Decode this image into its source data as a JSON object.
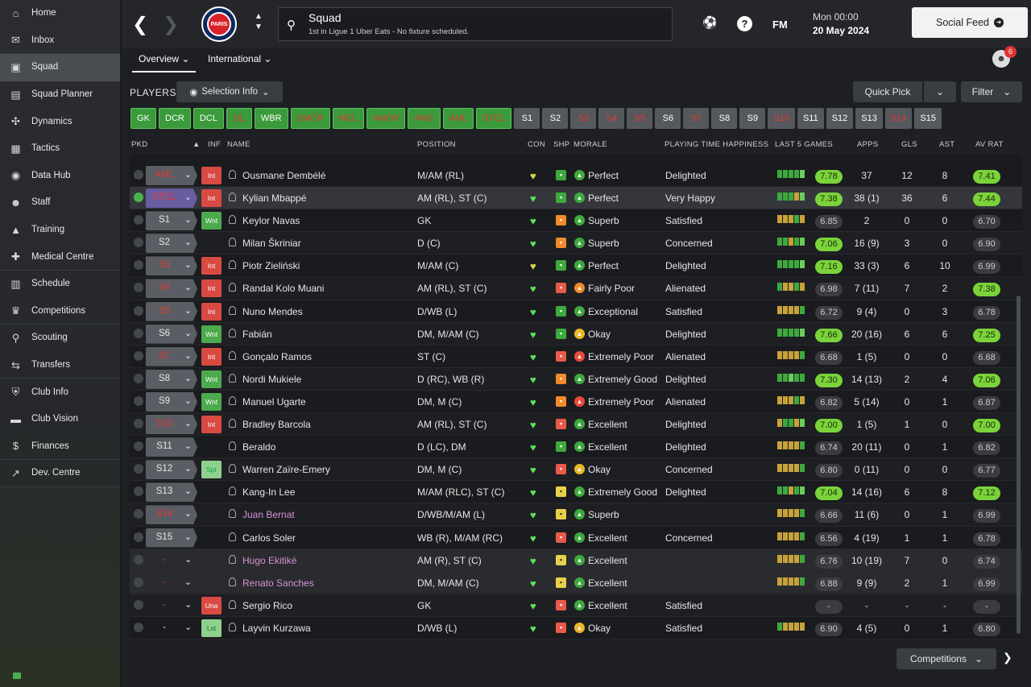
{
  "sidebar": {
    "items": [
      {
        "label": "Home",
        "icon": "home-icon",
        "g": "⌂"
      },
      {
        "label": "Inbox",
        "icon": "inbox-icon",
        "g": "✉"
      },
      {
        "label": "Squad",
        "icon": "squad-icon",
        "g": "▣"
      },
      {
        "label": "Squad Planner",
        "icon": "clipboard-icon",
        "g": "▤"
      },
      {
        "label": "Dynamics",
        "icon": "dynamics-icon",
        "g": "✣"
      },
      {
        "label": "Tactics",
        "icon": "tactics-icon",
        "g": "▦"
      },
      {
        "label": "Data Hub",
        "icon": "data-hub-icon",
        "g": "◉"
      },
      {
        "label": "Staff",
        "icon": "staff-icon",
        "g": "☻"
      },
      {
        "label": "Training",
        "icon": "training-icon",
        "g": "▲"
      },
      {
        "label": "Medical Centre",
        "icon": "medical-icon",
        "g": "✚"
      },
      {
        "label": "Schedule",
        "icon": "calendar-icon",
        "g": "▥"
      },
      {
        "label": "Competitions",
        "icon": "trophy-icon",
        "g": "♛"
      },
      {
        "label": "Scouting",
        "icon": "search-icon",
        "g": "⚲"
      },
      {
        "label": "Transfers",
        "icon": "transfers-icon",
        "g": "⇆"
      },
      {
        "label": "Club Info",
        "icon": "shield-icon",
        "g": "⛨"
      },
      {
        "label": "Club Vision",
        "icon": "briefcase-icon",
        "g": "▬"
      },
      {
        "label": "Finances",
        "icon": "finances-icon",
        "g": "$"
      },
      {
        "label": "Dev. Centre",
        "icon": "dev-centre-icon",
        "g": "↗"
      }
    ]
  },
  "header": {
    "back": "❮",
    "forward": "❯",
    "crest_text": "PARIS",
    "title": "Squad",
    "subtitle": "1st in Ligue 1 Uber Eats - No fixture scheduled.",
    "fm": "FM",
    "help": "?",
    "date_time": "Mon 00:00",
    "date": "20 May 2024",
    "social_feed": "Social Feed",
    "avatar_badge": "6"
  },
  "tabs": {
    "overview": "Overview",
    "international": "International"
  },
  "toolbar": {
    "players": "PLAYERS",
    "selection_info": "Selection Info",
    "quick_pick": "Quick Pick",
    "filter": "Filter"
  },
  "chips": [
    {
      "t": "GK",
      "c": "g"
    },
    {
      "t": "DCR",
      "c": "g"
    },
    {
      "t": "DCL",
      "c": "g"
    },
    {
      "t": "DL",
      "c": "gr"
    },
    {
      "t": "WBR",
      "c": "g"
    },
    {
      "t": "DMCR",
      "c": "gr"
    },
    {
      "t": "MCL",
      "c": "gr"
    },
    {
      "t": "AMCR",
      "c": "gr"
    },
    {
      "t": "AMC",
      "c": "gr"
    },
    {
      "t": "AML",
      "c": "gr"
    },
    {
      "t": "STCL",
      "c": "gr"
    },
    {
      "t": "S1",
      "c": "gy"
    },
    {
      "t": "S2",
      "c": "gy"
    },
    {
      "t": "S3",
      "c": "gyr"
    },
    {
      "t": "S4",
      "c": "gyr"
    },
    {
      "t": "S5",
      "c": "gyr"
    },
    {
      "t": "S6",
      "c": "gy"
    },
    {
      "t": "S7",
      "c": "gyr"
    },
    {
      "t": "S8",
      "c": "gy"
    },
    {
      "t": "S9",
      "c": "gy"
    },
    {
      "t": "S10",
      "c": "gyr"
    },
    {
      "t": "S11",
      "c": "gy"
    },
    {
      "t": "S12",
      "c": "gy"
    },
    {
      "t": "S13",
      "c": "gy"
    },
    {
      "t": "S14",
      "c": "gyr"
    },
    {
      "t": "S15",
      "c": "gy"
    }
  ],
  "columns": {
    "pkd": "PKD",
    "inf": "INF",
    "name": "NAME",
    "position": "POSITION",
    "con": "CON",
    "shp": "SHP",
    "morale": "MORALE",
    "pth": "PLAYING TIME HAPPINESS",
    "last5": "LAST 5 GAMES",
    "apps": "APPS",
    "gls": "GLS",
    "ast": "AST",
    "avrat": "AV RAT"
  },
  "rows": [
    {
      "pkd": false,
      "pos": "AML",
      "posRed": true,
      "inf": "Int",
      "infc": "int",
      "name": "Ousmane Dembélé",
      "position": "M/AM (RL)",
      "con": "y",
      "shp": "g",
      "mor": "g",
      "morale": "Perfect",
      "pth": "Delighted",
      "l5": [
        "g",
        "g",
        "g",
        "g",
        "lg"
      ],
      "l5r": "7.78",
      "l5g": true,
      "apps": "37",
      "gls": "12",
      "ast": "8",
      "av": "7.41",
      "avg": true
    },
    {
      "pkd": true,
      "pos": "STCL",
      "posRed": true,
      "sel": true,
      "inf": "Int",
      "infc": "int",
      "name": "Kylian Mbappé",
      "position": "AM (RL), ST (C)",
      "con": "g",
      "shp": "g",
      "mor": "g",
      "morale": "Perfect",
      "pth": "Very Happy",
      "l5": [
        "g",
        "g",
        "g",
        "o",
        "lg"
      ],
      "l5r": "7.38",
      "l5g": true,
      "apps": "38 (1)",
      "gls": "36",
      "ast": "6",
      "av": "7.44",
      "avg": true,
      "hl": true
    },
    {
      "pkd": false,
      "pos": "S1",
      "inf": "Wnt",
      "infc": "wnt",
      "name": "Keylor Navas",
      "position": "GK",
      "con": "g",
      "shp": "o",
      "mor": "g",
      "morale": "Superb",
      "pth": "Satisfied",
      "l5": [
        "o",
        "o",
        "o",
        "g",
        "o"
      ],
      "l5r": "6.85",
      "apps": "2",
      "gls": "0",
      "ast": "0",
      "av": "6.70"
    },
    {
      "pkd": false,
      "pos": "S2",
      "inf": "",
      "name": "Milan Škriniar",
      "position": "D (C)",
      "con": "g",
      "shp": "o",
      "mor": "g",
      "morale": "Superb",
      "pth": "Concerned",
      "l5": [
        "g",
        "g",
        "o",
        "g",
        "lg"
      ],
      "l5r": "7.06",
      "l5g": true,
      "apps": "16 (9)",
      "gls": "3",
      "ast": "0",
      "av": "6.90"
    },
    {
      "pkd": false,
      "pos": "S3",
      "posRed": true,
      "inf": "Int",
      "infc": "int",
      "name": "Piotr Zieliński",
      "position": "M/AM (C)",
      "con": "y",
      "shp": "g",
      "mor": "g",
      "morale": "Perfect",
      "pth": "Delighted",
      "l5": [
        "g",
        "g",
        "g",
        "g",
        "lg"
      ],
      "l5r": "7.16",
      "l5g": true,
      "apps": "33 (3)",
      "gls": "6",
      "ast": "10",
      "av": "6.99"
    },
    {
      "pkd": false,
      "pos": "S4",
      "posRed": true,
      "inf": "Int",
      "infc": "int",
      "name": "Randal Kolo Muani",
      "position": "AM (RL), ST (C)",
      "con": "g",
      "shp": "r",
      "mor": "o",
      "morale": "Fairly Poor",
      "pth": "Alienated",
      "l5": [
        "g",
        "o",
        "o",
        "g",
        "o"
      ],
      "l5r": "6.98",
      "apps": "7 (11)",
      "gls": "7",
      "ast": "2",
      "av": "7.38",
      "avg": true
    },
    {
      "pkd": false,
      "pos": "S5",
      "posRed": true,
      "inf": "Int",
      "infc": "int",
      "name": "Nuno Mendes",
      "position": "D/WB (L)",
      "con": "g",
      "shp": "g",
      "mor": "g",
      "morale": "Exceptional",
      "pth": "Satisfied",
      "l5": [
        "o",
        "o",
        "o",
        "o",
        "g"
      ],
      "l5r": "6.72",
      "apps": "9 (4)",
      "gls": "0",
      "ast": "3",
      "av": "6.78"
    },
    {
      "pkd": false,
      "pos": "S6",
      "inf": "Wnt",
      "infc": "wnt",
      "name": "Fabián",
      "position": "DM, M/AM (C)",
      "con": "g",
      "shp": "g",
      "mor": "y",
      "morale": "Okay",
      "pth": "Delighted",
      "l5": [
        "g",
        "g",
        "g",
        "g",
        "lg"
      ],
      "l5r": "7.66",
      "l5g": true,
      "apps": "20 (16)",
      "gls": "6",
      "ast": "6",
      "av": "7.25",
      "avg": true
    },
    {
      "pkd": false,
      "pos": "S7",
      "posRed": true,
      "inf": "Int",
      "infc": "int",
      "name": "Gonçalo Ramos",
      "position": "ST (C)",
      "con": "g",
      "shp": "r",
      "mor": "r",
      "morale": "Extremely Poor",
      "pth": "Alienated",
      "l5": [
        "o",
        "o",
        "o",
        "o",
        "g"
      ],
      "l5r": "6.68",
      "apps": "1 (5)",
      "gls": "0",
      "ast": "0",
      "av": "6.68"
    },
    {
      "pkd": false,
      "pos": "S8",
      "inf": "Wnt",
      "infc": "wnt",
      "name": "Nordi Mukiele",
      "position": "D (RC), WB (R)",
      "con": "g",
      "shp": "o",
      "mor": "g",
      "morale": "Extremely Good",
      "pth": "Delighted",
      "l5": [
        "g",
        "g",
        "lg",
        "g",
        "g"
      ],
      "l5r": "7.30",
      "l5g": true,
      "apps": "14 (13)",
      "gls": "2",
      "ast": "4",
      "av": "7.06",
      "avg": true
    },
    {
      "pkd": false,
      "pos": "S9",
      "inf": "Wnt",
      "infc": "wnt",
      "name": "Manuel Ugarte",
      "position": "DM, M (C)",
      "con": "g",
      "shp": "o",
      "mor": "r",
      "morale": "Extremely Poor",
      "pth": "Alienated",
      "l5": [
        "o",
        "o",
        "o",
        "g",
        "o"
      ],
      "l5r": "6.82",
      "apps": "5 (14)",
      "gls": "0",
      "ast": "1",
      "av": "6.87"
    },
    {
      "pkd": false,
      "pos": "S10",
      "posRed": true,
      "inf": "Int",
      "infc": "int",
      "name": "Bradley Barcola",
      "position": "AM (RL), ST (C)",
      "con": "g",
      "shp": "r",
      "mor": "g",
      "morale": "Excellent",
      "pth": "Delighted",
      "l5": [
        "o",
        "g",
        "g",
        "o",
        "lg"
      ],
      "l5r": "7.00",
      "l5g": true,
      "apps": "1 (5)",
      "gls": "1",
      "ast": "0",
      "av": "7.00",
      "avg": true
    },
    {
      "pkd": false,
      "pos": "S11",
      "inf": "",
      "name": "Beraldo",
      "position": "D (LC), DM",
      "con": "g",
      "shp": "g",
      "mor": "g",
      "morale": "Excellent",
      "pth": "Delighted",
      "l5": [
        "o",
        "o",
        "o",
        "o",
        "g"
      ],
      "l5r": "6.74",
      "apps": "20 (11)",
      "gls": "0",
      "ast": "1",
      "av": "6.82"
    },
    {
      "pkd": false,
      "pos": "S12",
      "inf": "Spt",
      "infc": "spt",
      "name": "Warren Zaïre-Emery",
      "position": "DM, M (C)",
      "con": "g",
      "shp": "r",
      "mor": "y",
      "morale": "Okay",
      "pth": "Concerned",
      "l5": [
        "o",
        "o",
        "o",
        "o",
        "g"
      ],
      "l5r": "6.80",
      "apps": "0 (11)",
      "gls": "0",
      "ast": "0",
      "av": "6.77"
    },
    {
      "pkd": false,
      "pos": "S13",
      "inf": "",
      "name": "Kang-In Lee",
      "position": "M/AM (RLC), ST (C)",
      "con": "g",
      "shp": "y",
      "mor": "g",
      "morale": "Extremely Good",
      "pth": "Delighted",
      "l5": [
        "g",
        "g",
        "o",
        "g",
        "lg"
      ],
      "l5r": "7.04",
      "l5g": true,
      "apps": "14 (16)",
      "gls": "6",
      "ast": "8",
      "av": "7.12",
      "avg": true
    },
    {
      "pkd": false,
      "pos": "S14",
      "posRed": true,
      "inf": "",
      "name": "Juan Bernat",
      "pink": true,
      "position": "D/WB/M/AM (L)",
      "con": "g",
      "shp": "y",
      "mor": "g",
      "morale": "Superb",
      "pth": "",
      "l5": [
        "o",
        "o",
        "o",
        "o",
        "g"
      ],
      "l5r": "6.66",
      "apps": "11 (6)",
      "gls": "0",
      "ast": "1",
      "av": "6.99"
    },
    {
      "pkd": false,
      "pos": "S15",
      "inf": "",
      "name": "Carlos Soler",
      "position": "WB (R), M/AM (RC)",
      "con": "g",
      "shp": "r",
      "mor": "g",
      "morale": "Excellent",
      "pth": "Concerned",
      "l5": [
        "o",
        "o",
        "o",
        "o",
        "g"
      ],
      "l5r": "6.56",
      "apps": "4 (19)",
      "gls": "1",
      "ast": "1",
      "av": "6.78"
    },
    {
      "pkd": false,
      "pos": "-",
      "posRed": true,
      "nobox": true,
      "inf": "",
      "name": "Hugo Ekitiké",
      "pink": true,
      "position": "AM (R), ST (C)",
      "con": "g",
      "shp": "y",
      "mor": "g",
      "morale": "Excellent",
      "pth": "",
      "l5": [
        "o",
        "o",
        "o",
        "o",
        "g"
      ],
      "l5r": "6.76",
      "apps": "10 (19)",
      "gls": "7",
      "ast": "0",
      "av": "6.74",
      "grey": true
    },
    {
      "pkd": false,
      "pos": "-",
      "posRed": true,
      "nobox": true,
      "inf": "",
      "name": "Renato Sanches",
      "pink": true,
      "position": "DM, M/AM (C)",
      "con": "g",
      "shp": "y",
      "mor": "g",
      "morale": "Excellent",
      "pth": "",
      "l5": [
        "o",
        "o",
        "o",
        "o",
        "g"
      ],
      "l5r": "6.88",
      "apps": "9 (9)",
      "gls": "2",
      "ast": "1",
      "av": "6.99",
      "grey": true
    },
    {
      "pkd": false,
      "pos": "-",
      "posRed": true,
      "nobox": true,
      "inf": "Una",
      "infc": "una",
      "name": "Sergio Rico",
      "position": "GK",
      "con": "g",
      "shp": "r",
      "mor": "g",
      "morale": "Excellent",
      "pth": "Satisfied",
      "l5": [],
      "l5r": "-",
      "apps": "-",
      "gls": "-",
      "ast": "-",
      "av": "-"
    },
    {
      "pkd": false,
      "pos": "-",
      "nobox": true,
      "inf": "Lst",
      "infc": "lst",
      "name": "Layvin Kurzawa",
      "position": "D/WB (L)",
      "con": "g",
      "shp": "r",
      "mor": "y",
      "morale": "Okay",
      "pth": "Satisfied",
      "l5": [
        "g",
        "o",
        "o",
        "o",
        "o"
      ],
      "l5r": "6.90",
      "apps": "4 (5)",
      "gls": "0",
      "ast": "1",
      "av": "6.80"
    }
  ],
  "footer": {
    "competitions": "Competitions"
  }
}
